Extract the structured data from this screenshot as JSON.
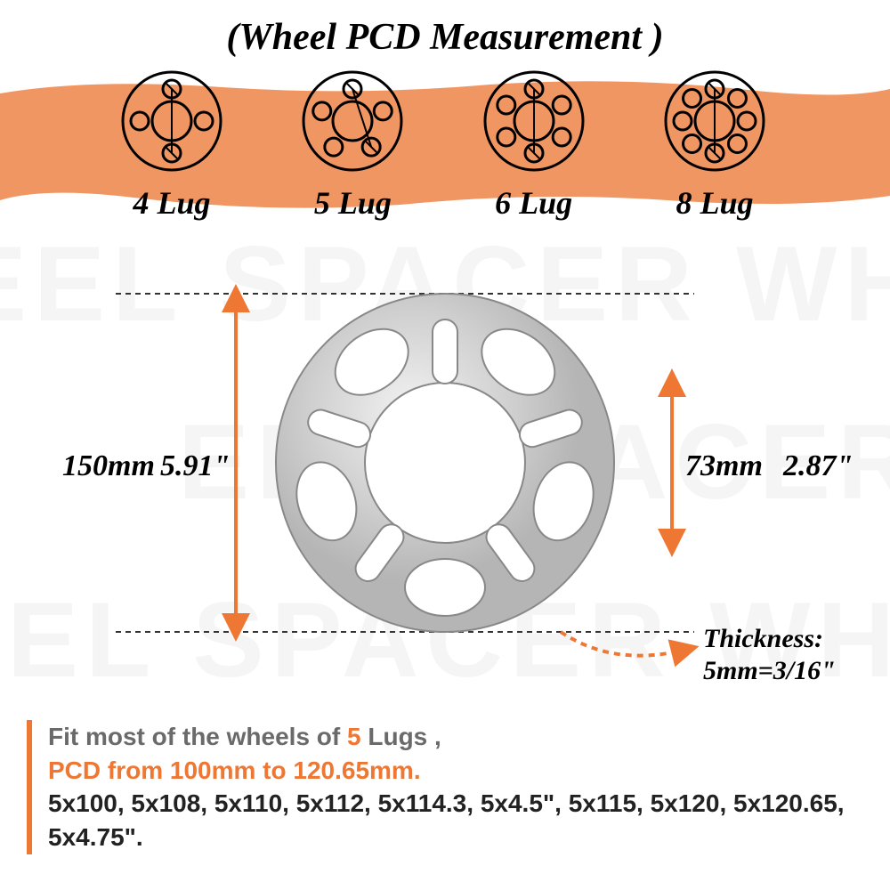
{
  "title": "(Wheel PCD Measurement )",
  "watermark_text": "EEL SPACER WHEELS",
  "colors": {
    "orange": "#ee7733",
    "orange_band": "#f09663",
    "black": "#1a1a1a",
    "grey_text": "#6a6a6a",
    "arrow": "#ee7733",
    "watermark": "#f5f5f5",
    "spacer_fill": "#d8d8d8",
    "spacer_stroke": "#8a8a8a"
  },
  "lug_diagrams": [
    {
      "lugs": 4,
      "label": "4 Lug"
    },
    {
      "lugs": 5,
      "label": "5 Lug"
    },
    {
      "lugs": 6,
      "label": "6 Lug"
    },
    {
      "lugs": 8,
      "label": "8 Lug"
    }
  ],
  "dimensions": {
    "outer_mm": "150mm",
    "outer_in": "5.91\"",
    "inner_mm": "73mm",
    "inner_in": "2.87\"",
    "thickness_label": "Thickness:",
    "thickness_value": "5mm=3/16\""
  },
  "footer": {
    "line1_pre": "Fit most of the wheels of ",
    "line1_highlight": "5",
    "line1_post": " Lugs ,",
    "line2": "PCD from 100mm  to 120.65mm.",
    "line3": "5x100, 5x108, 5x110, 5x112, 5x114.3, 5x4.5\", 5x115, 5x120, 5x120.65, 5x4.75\"."
  },
  "diagram_style": {
    "lug_outer_r": 55,
    "lug_hub_r": 22,
    "lug_hole_r": 10,
    "lug_pcd_r": 36,
    "stroke_width": 3
  }
}
